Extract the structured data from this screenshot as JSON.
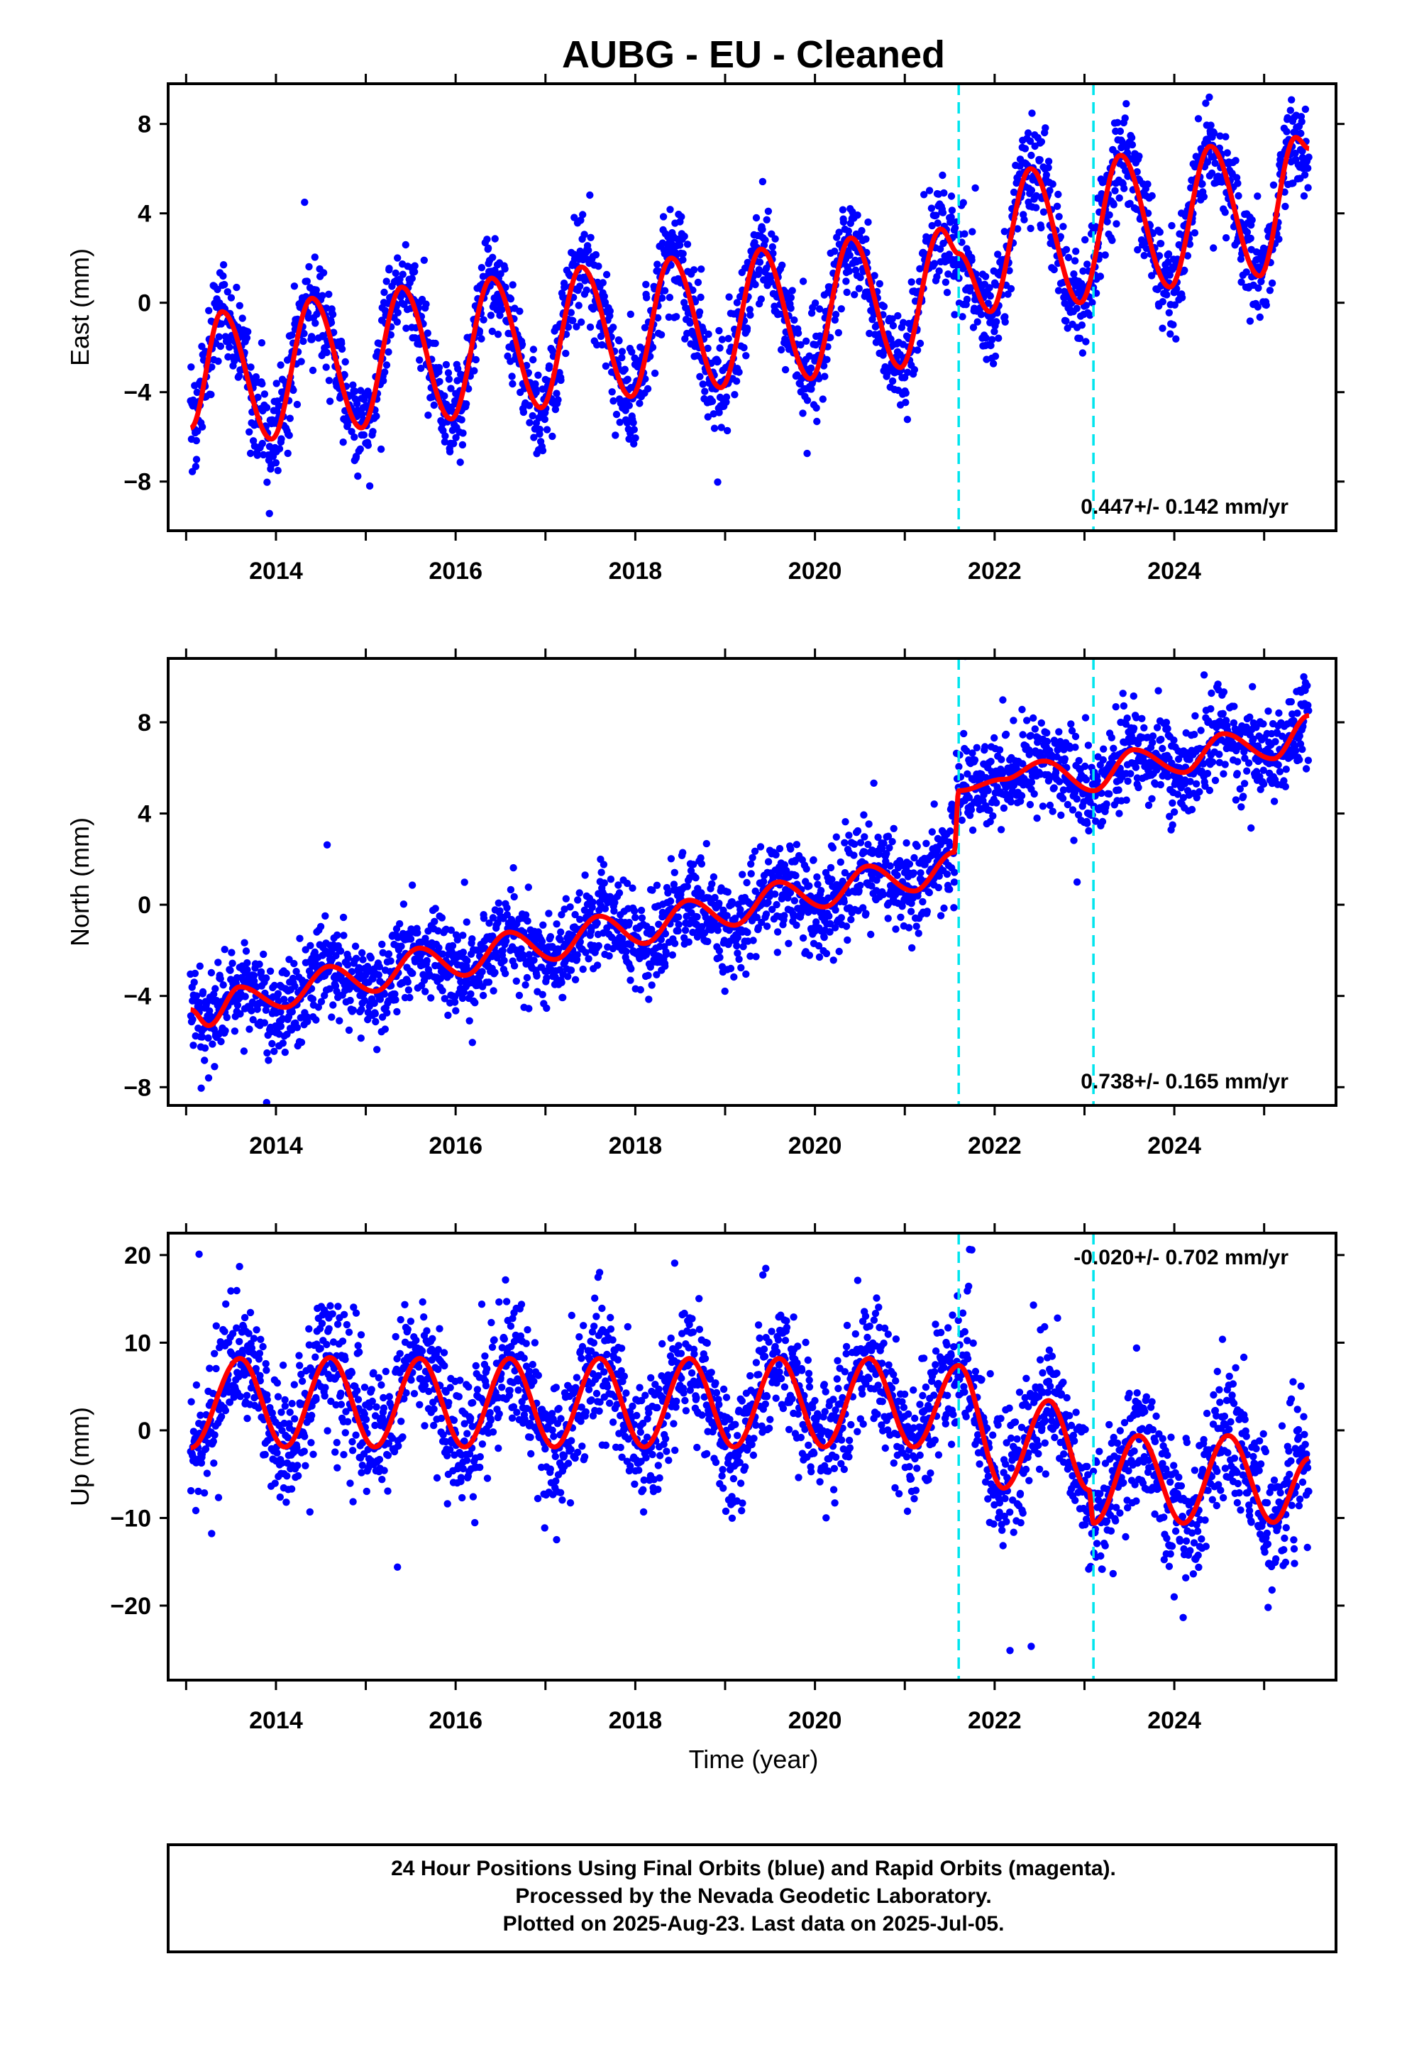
{
  "title": "AUBG  - EU - Cleaned",
  "colors": {
    "points": "#0000ff",
    "fit": "#ff0000",
    "event_lines": "#00e5ee",
    "frame": "#000000"
  },
  "x_axis": {
    "label": "Time (year)",
    "ticks": [
      "2014",
      "2016",
      "2018",
      "2020",
      "2022",
      "2024"
    ],
    "range": [
      2012.8,
      2025.8
    ]
  },
  "footer": {
    "lines": [
      "24 Hour Positions Using Final Orbits (blue) and Rapid Orbits (magenta).",
      "Processed by the Nevada Geodetic Laboratory.",
      "Plotted on 2025-Aug-23. Last data on 2025-Jul-05."
    ]
  },
  "chart_data": [
    {
      "type": "scatter",
      "name": "East",
      "ylabel": "East (mm)",
      "ylim": [
        -10.2,
        9.8
      ],
      "yticks": [
        "8",
        "4",
        "0",
        "−4",
        "−8"
      ],
      "rate_label": "0.447+/- 0.142 mm/yr",
      "rate_position": "bottom-right",
      "data_range": {
        "x": [
          2013.05,
          2025.5
        ]
      },
      "event_lines_year": [
        2021.6,
        2023.1
      ],
      "fit_curve_points": [
        [
          2013.05,
          -5.6
        ],
        [
          2013.4,
          -0.4
        ],
        [
          2013.95,
          -6.1
        ],
        [
          2014.4,
          0.2
        ],
        [
          2014.95,
          -5.6
        ],
        [
          2015.4,
          0.7
        ],
        [
          2015.95,
          -5.2
        ],
        [
          2016.4,
          1.1
        ],
        [
          2016.95,
          -4.7
        ],
        [
          2017.4,
          1.6
        ],
        [
          2017.95,
          -4.2
        ],
        [
          2018.4,
          2.0
        ],
        [
          2018.95,
          -3.8
        ],
        [
          2019.4,
          2.4
        ],
        [
          2019.95,
          -3.4
        ],
        [
          2020.4,
          2.9
        ],
        [
          2020.95,
          -2.9
        ],
        [
          2021.4,
          3.3
        ],
        [
          2021.6,
          2.2
        ],
        [
          2021.95,
          -0.4
        ],
        [
          2022.4,
          6.0
        ],
        [
          2022.95,
          0.0
        ],
        [
          2023.4,
          6.6
        ],
        [
          2023.95,
          0.7
        ],
        [
          2024.4,
          7.0
        ],
        [
          2024.95,
          1.2
        ],
        [
          2025.35,
          7.4
        ],
        [
          2025.5,
          6.9
        ]
      ]
    },
    {
      "type": "scatter",
      "name": "North",
      "ylabel": "North (mm)",
      "ylim": [
        -8.8,
        10.8
      ],
      "yticks": [
        "8",
        "4",
        "0",
        "−4",
        "−8"
      ],
      "rate_label": "0.738+/- 0.165 mm/yr",
      "rate_position": "bottom-right",
      "data_range": {
        "x": [
          2013.05,
          2025.5
        ]
      },
      "event_lines_year": [
        2021.6,
        2023.1
      ],
      "fit_curve_points": [
        [
          2013.05,
          -4.6
        ],
        [
          2013.25,
          -5.3
        ],
        [
          2013.6,
          -3.6
        ],
        [
          2014.1,
          -4.5
        ],
        [
          2014.6,
          -2.7
        ],
        [
          2015.1,
          -3.8
        ],
        [
          2015.6,
          -1.9
        ],
        [
          2016.1,
          -3.1
        ],
        [
          2016.6,
          -1.2
        ],
        [
          2017.1,
          -2.4
        ],
        [
          2017.6,
          -0.5
        ],
        [
          2018.1,
          -1.7
        ],
        [
          2018.6,
          0.2
        ],
        [
          2019.1,
          -0.9
        ],
        [
          2019.6,
          1.0
        ],
        [
          2020.1,
          -0.1
        ],
        [
          2020.6,
          1.7
        ],
        [
          2021.1,
          0.6
        ],
        [
          2021.55,
          2.3
        ],
        [
          2021.6,
          5.0
        ],
        [
          2022.1,
          5.5
        ],
        [
          2022.55,
          6.3
        ],
        [
          2023.1,
          5.0
        ],
        [
          2023.55,
          6.8
        ],
        [
          2024.1,
          5.8
        ],
        [
          2024.55,
          7.5
        ],
        [
          2025.1,
          6.4
        ],
        [
          2025.5,
          8.3
        ]
      ]
    },
    {
      "type": "scatter",
      "name": "Up",
      "ylabel": "Up (mm)",
      "ylim": [
        -28.5,
        22.5
      ],
      "yticks": [
        "20",
        "10",
        "0",
        "−10",
        "−20"
      ],
      "rate_label": "-0.020+/- 0.702 mm/yr",
      "rate_position": "top-right",
      "data_range": {
        "x": [
          2013.05,
          2025.5
        ]
      },
      "event_lines_year": [
        2021.6,
        2023.1
      ],
      "fit_curve_points": [
        [
          2013.05,
          -2.0
        ],
        [
          2013.6,
          8.2
        ],
        [
          2014.1,
          -1.9
        ],
        [
          2014.6,
          8.3
        ],
        [
          2015.1,
          -1.9
        ],
        [
          2015.6,
          8.2
        ],
        [
          2016.1,
          -1.9
        ],
        [
          2016.6,
          8.2
        ],
        [
          2017.1,
          -1.9
        ],
        [
          2017.6,
          8.2
        ],
        [
          2018.1,
          -1.9
        ],
        [
          2018.6,
          8.2
        ],
        [
          2019.1,
          -1.9
        ],
        [
          2019.6,
          8.2
        ],
        [
          2020.1,
          -1.9
        ],
        [
          2020.6,
          8.2
        ],
        [
          2021.1,
          -1.9
        ],
        [
          2021.6,
          7.4
        ],
        [
          2022.1,
          -6.6
        ],
        [
          2022.6,
          3.4
        ],
        [
          2023.05,
          -6.8
        ],
        [
          2023.1,
          -10.6
        ],
        [
          2023.6,
          -0.6
        ],
        [
          2024.1,
          -10.6
        ],
        [
          2024.6,
          -0.6
        ],
        [
          2025.1,
          -10.5
        ],
        [
          2025.5,
          -3.2
        ]
      ]
    }
  ]
}
